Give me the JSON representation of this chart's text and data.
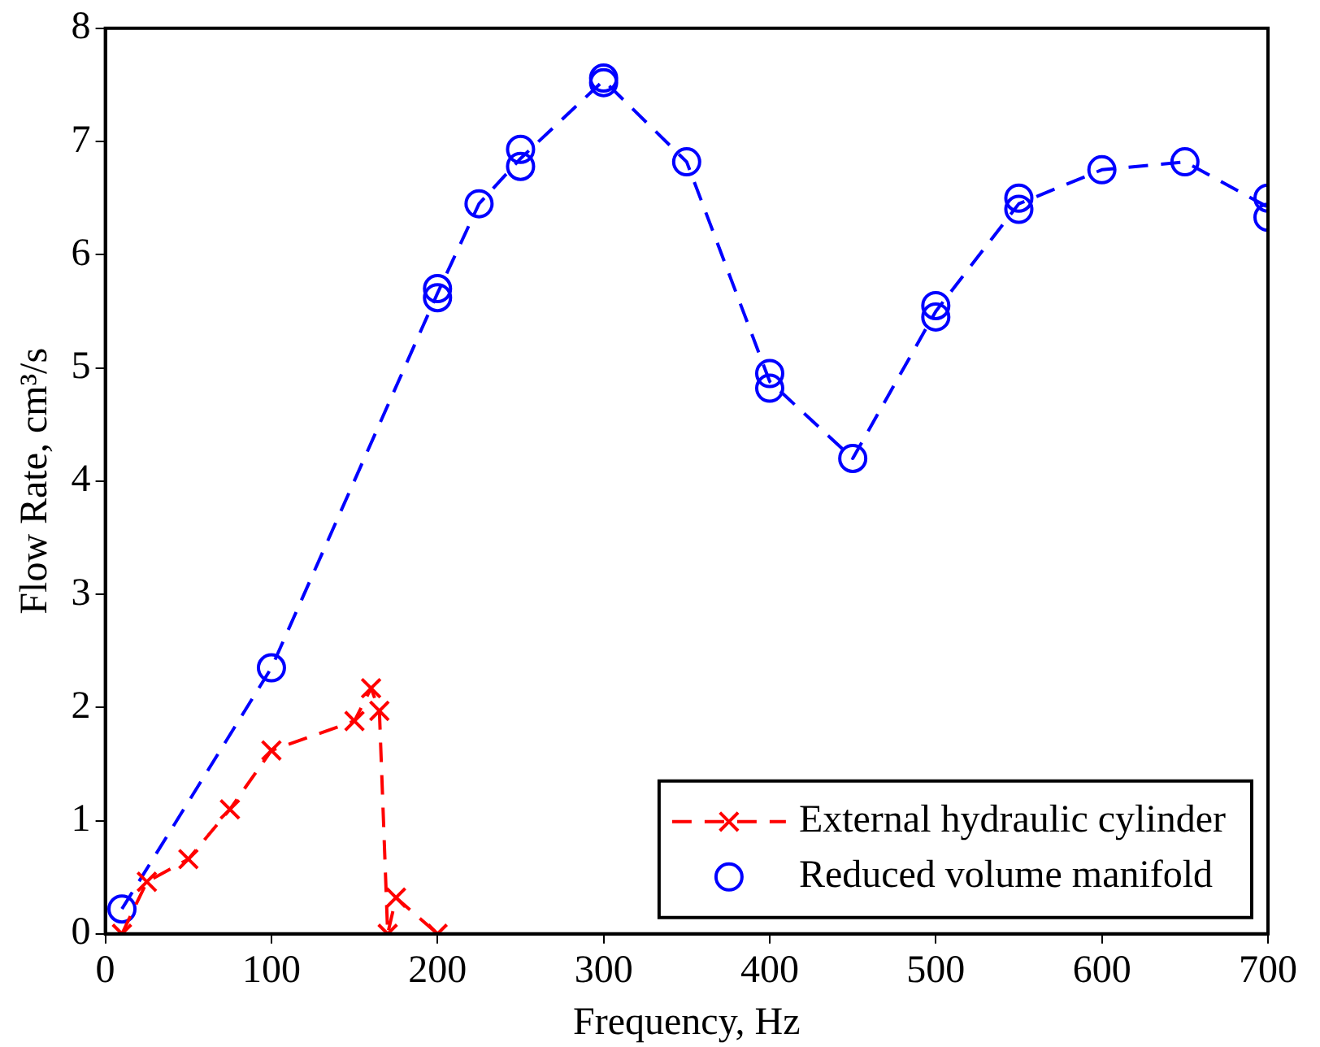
{
  "chart_data": {
    "type": "line",
    "xlabel": "Frequency, Hz",
    "ylabel": "Flow Rate, cm³/s",
    "xlim": [
      0,
      700
    ],
    "xticks": [
      0,
      100,
      200,
      300,
      400,
      500,
      600,
      700
    ],
    "ylim": [
      0,
      8
    ],
    "yticks": [
      0,
      1,
      2,
      3,
      4,
      5,
      6,
      7,
      8
    ],
    "grid": false,
    "legend": "bottom right",
    "line_style": "dashed",
    "series": [
      {
        "name": "External hydraulic cylinder",
        "color": "#ff0000",
        "marker": "cross",
        "x": [
          10,
          25,
          50,
          75,
          100,
          150,
          160,
          165,
          170,
          175,
          200
        ],
        "values": [
          0,
          0.46,
          0.66,
          1.1,
          1.62,
          1.88,
          2.17,
          1.97,
          0,
          0.32,
          0
        ]
      },
      {
        "color": "#0000ff",
        "marker": "none",
        "x": [
          10,
          100,
          200,
          225,
          250,
          300,
          350,
          400,
          450,
          500,
          550,
          600,
          650,
          700
        ],
        "values": [
          0.22,
          2.35,
          5.66,
          6.45,
          6.85,
          7.54,
          6.82,
          4.88,
          4.2,
          5.5,
          6.45,
          6.75,
          6.82,
          6.42
        ]
      },
      {
        "name": "Reduced volume manifold",
        "type": "scatter",
        "color": "#0000ff",
        "marker": "circle",
        "x": [
          10,
          100,
          200,
          200,
          225,
          250,
          250,
          300,
          300,
          350,
          400,
          400,
          450,
          500,
          500,
          550,
          550,
          600,
          650,
          700,
          700
        ],
        "values": [
          0.22,
          2.35,
          5.7,
          5.62,
          6.45,
          6.93,
          6.78,
          7.56,
          7.52,
          6.82,
          4.95,
          4.82,
          4.2,
          5.55,
          5.45,
          6.5,
          6.4,
          6.75,
          6.82,
          6.5,
          6.33
        ]
      }
    ]
  }
}
